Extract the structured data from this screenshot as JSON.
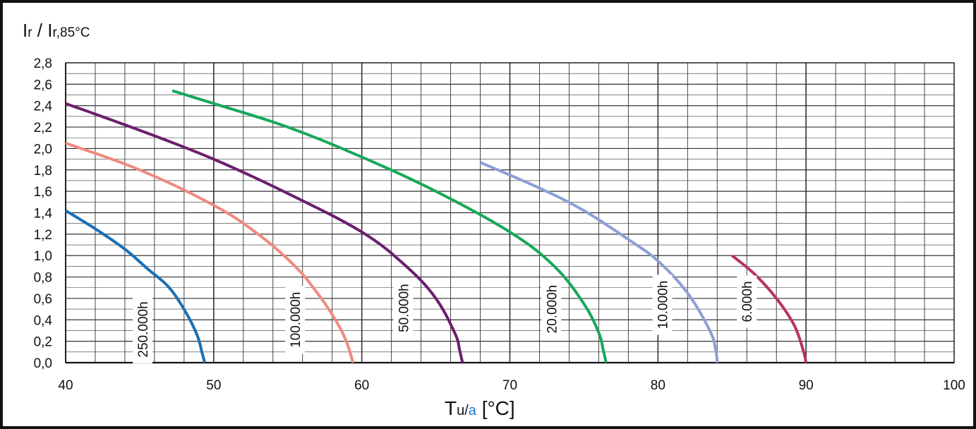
{
  "chart_data": {
    "type": "line",
    "title": "",
    "ylabel_parts": [
      "I",
      "r",
      " / ",
      "I",
      "r,85°C"
    ],
    "xlabel_parts": [
      "T",
      "u/",
      "a",
      " [°C]"
    ],
    "xlim": [
      40,
      100
    ],
    "ylim": [
      0.0,
      2.8
    ],
    "x_ticks": [
      "40",
      "50",
      "60",
      "70",
      "80",
      "90",
      "100"
    ],
    "y_ticks": [
      "0,0",
      "0,2",
      "0,4",
      "0,6",
      "0,8",
      "1,0",
      "1,2",
      "1,4",
      "1,6",
      "1,8",
      "2,0",
      "2,2",
      "2,4",
      "2,6",
      "2,8"
    ],
    "grid": true,
    "colors": {
      "axis_accent": "#1f78c8",
      "grid": "#333333",
      "frame": "#111111"
    },
    "series": [
      {
        "name": "250.000h",
        "color": "#1a6fb5",
        "x": [
          40,
          42,
          44,
          45.5,
          47,
          48.2,
          48.9,
          49.2,
          49.4
        ],
        "y": [
          1.42,
          1.25,
          1.06,
          0.88,
          0.7,
          0.45,
          0.25,
          0.1,
          0.0
        ]
      },
      {
        "name": "100.000h",
        "color": "#f08a80",
        "x": [
          40,
          45,
          50,
          53,
          55.5,
          57,
          58,
          58.8,
          59.2,
          59.4
        ],
        "y": [
          2.05,
          1.8,
          1.47,
          1.2,
          0.9,
          0.65,
          0.45,
          0.25,
          0.1,
          0.0
        ]
      },
      {
        "name": "50.000h",
        "color": "#6b1f6e",
        "x": [
          40,
          45,
          50,
          55,
          60,
          63,
          65,
          66.3,
          66.6,
          66.8
        ],
        "y": [
          2.42,
          2.17,
          1.9,
          1.58,
          1.22,
          0.9,
          0.6,
          0.27,
          0.12,
          0.0
        ]
      },
      {
        "name": "20.000h",
        "color": "#17a85a",
        "x": [
          47.2,
          50,
          55,
          60,
          65,
          70,
          73,
          75,
          76,
          76.3,
          76.5
        ],
        "y": [
          2.54,
          2.42,
          2.2,
          1.92,
          1.6,
          1.22,
          0.9,
          0.55,
          0.28,
          0.12,
          0.0
        ]
      },
      {
        "name": "10.000h",
        "color": "#8e9fd3",
        "x": [
          68,
          72,
          75,
          78,
          80,
          82,
          83.5,
          83.9,
          84
        ],
        "y": [
          1.87,
          1.63,
          1.42,
          1.15,
          0.95,
          0.65,
          0.3,
          0.12,
          0.0
        ]
      },
      {
        "name": "6.000h",
        "color": "#b8336a",
        "x": [
          85,
          86.5,
          88,
          89.2,
          89.8,
          90
        ],
        "y": [
          1.0,
          0.83,
          0.6,
          0.35,
          0.12,
          0.0
        ]
      }
    ],
    "labels": [
      {
        "series": 0,
        "x": 45.2,
        "y": 0.31
      },
      {
        "series": 1,
        "x": 55.5,
        "y": 0.4
      },
      {
        "series": 2,
        "x": 62.8,
        "y": 0.51
      },
      {
        "series": 3,
        "x": 72.8,
        "y": 0.5
      },
      {
        "series": 4,
        "x": 80.3,
        "y": 0.54
      },
      {
        "series": 5,
        "x": 86.0,
        "y": 0.57
      }
    ]
  }
}
